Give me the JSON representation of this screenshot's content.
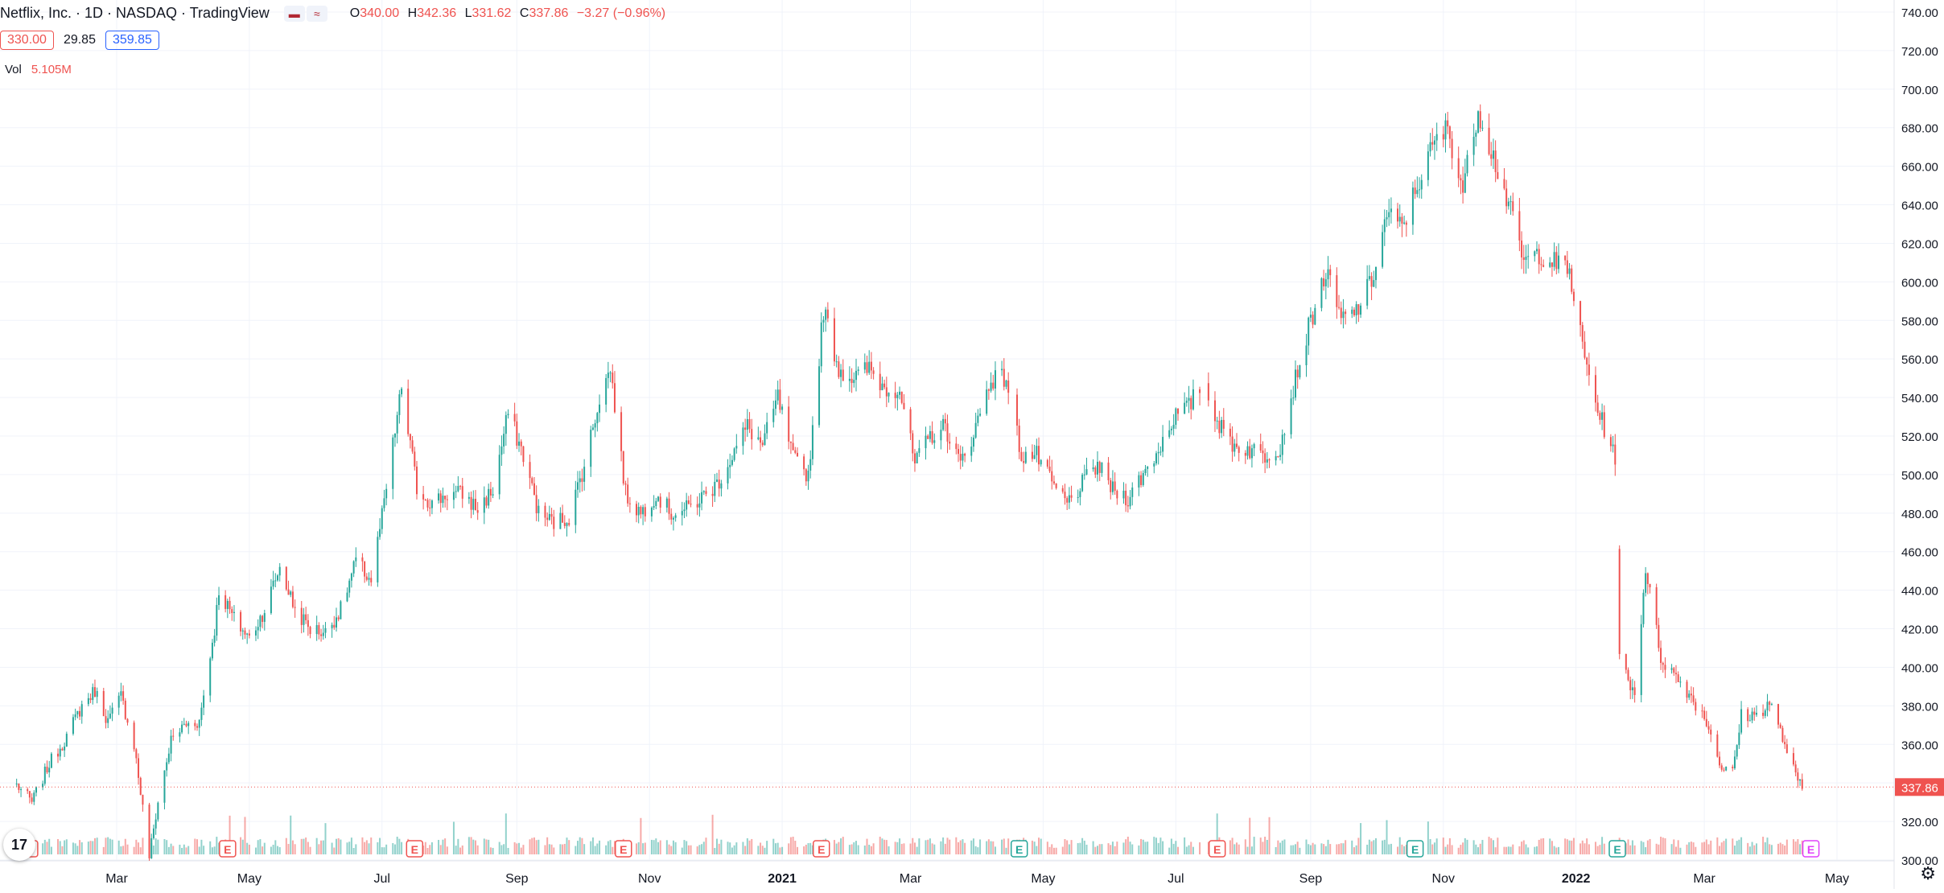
{
  "header": {
    "title": "Netflix, Inc. · 1D · NASDAQ · TradingView",
    "ohlc": {
      "o_label": "O",
      "o": "340.00",
      "h_label": "H",
      "h": "342.36",
      "l_label": "L",
      "l": "331.62",
      "c_label": "C",
      "c": "337.86",
      "change": "−3.27 (−0.96%)"
    },
    "ma": {
      "low": "330.00",
      "mid": "29.85",
      "high": "359.85"
    },
    "vol_label": "Vol",
    "vol_value": "5.105M"
  },
  "colors": {
    "up": "#26a69a",
    "down": "#ef5350",
    "grid": "#f0f3fa",
    "axis_text": "#131722",
    "earnings_future": "#e040fb",
    "ma_high": "#2962ff"
  },
  "icons": {
    "logo": "tradingview-logo-icon",
    "settings": "gear-icon"
  },
  "chart_data": {
    "type": "candlestick",
    "title": "Netflix, Inc. · 1D · NASDAQ · TradingView",
    "last_price": 337.86,
    "ylim": [
      300,
      745
    ],
    "y_ticks": [
      300,
      320,
      340,
      360,
      380,
      400,
      420,
      440,
      460,
      480,
      500,
      520,
      540,
      560,
      580,
      600,
      620,
      640,
      660,
      680,
      700,
      720,
      740
    ],
    "y_tick_labels": [
      "300.00",
      "320.00",
      "340.00",
      "360.00",
      "380.00",
      "400.00",
      "420.00",
      "440.00",
      "460.00",
      "480.00",
      "500.00",
      "520.00",
      "540.00",
      "560.00",
      "580.00",
      "600.00",
      "620.00",
      "640.00",
      "660.00",
      "680.00",
      "700.00",
      "720.00",
      "740.00"
    ],
    "x_range": [
      "2020-01-15",
      "2022-05-31"
    ],
    "x_ticks": [
      {
        "date": "2020-03-01",
        "label": "Mar",
        "bold": false
      },
      {
        "date": "2020-05-01",
        "label": "May",
        "bold": false
      },
      {
        "date": "2020-07-01",
        "label": "Jul",
        "bold": false
      },
      {
        "date": "2020-09-01",
        "label": "Sep",
        "bold": false
      },
      {
        "date": "2020-11-01",
        "label": "Nov",
        "bold": false
      },
      {
        "date": "2021-01-01",
        "label": "2021",
        "bold": true
      },
      {
        "date": "2021-03-01",
        "label": "Mar",
        "bold": false
      },
      {
        "date": "2021-05-01",
        "label": "May",
        "bold": false
      },
      {
        "date": "2021-07-01",
        "label": "Jul",
        "bold": false
      },
      {
        "date": "2021-09-01",
        "label": "Sep",
        "bold": false
      },
      {
        "date": "2021-11-01",
        "label": "Nov",
        "bold": false
      },
      {
        "date": "2022-01-01",
        "label": "2022",
        "bold": true
      },
      {
        "date": "2022-03-01",
        "label": "Mar",
        "bold": false
      },
      {
        "date": "2022-05-01",
        "label": "May",
        "bold": false
      }
    ],
    "price_path": [
      [
        "2020-01-15",
        339
      ],
      [
        "2020-01-22",
        330
      ],
      [
        "2020-01-30",
        350
      ],
      [
        "2020-02-06",
        362
      ],
      [
        "2020-02-14",
        380
      ],
      [
        "2020-02-20",
        388
      ],
      [
        "2020-02-26",
        372
      ],
      [
        "2020-03-03",
        385
      ],
      [
        "2020-03-09",
        360
      ],
      [
        "2020-03-16",
        302
      ],
      [
        "2020-03-20",
        330
      ],
      [
        "2020-03-26",
        362
      ],
      [
        "2020-04-01",
        370
      ],
      [
        "2020-04-08",
        372
      ],
      [
        "2020-04-15",
        420
      ],
      [
        "2020-04-17",
        440
      ],
      [
        "2020-04-24",
        425
      ],
      [
        "2020-05-01",
        415
      ],
      [
        "2020-05-08",
        430
      ],
      [
        "2020-05-15",
        452
      ],
      [
        "2020-05-22",
        430
      ],
      [
        "2020-05-29",
        420
      ],
      [
        "2020-06-05",
        418
      ],
      [
        "2020-06-12",
        430
      ],
      [
        "2020-06-19",
        455
      ],
      [
        "2020-06-26",
        445
      ],
      [
        "2020-07-02",
        485
      ],
      [
        "2020-07-10",
        545
      ],
      [
        "2020-07-17",
        493
      ],
      [
        "2020-07-24",
        485
      ],
      [
        "2020-07-31",
        490
      ],
      [
        "2020-08-07",
        490
      ],
      [
        "2020-08-14",
        482
      ],
      [
        "2020-08-21",
        492
      ],
      [
        "2020-08-28",
        532
      ],
      [
        "2020-09-04",
        510
      ],
      [
        "2020-09-11",
        480
      ],
      [
        "2020-09-18",
        475
      ],
      [
        "2020-09-25",
        478
      ],
      [
        "2020-10-02",
        505
      ],
      [
        "2020-10-09",
        540
      ],
      [
        "2020-10-14",
        555
      ],
      [
        "2020-10-21",
        490
      ],
      [
        "2020-10-28",
        480
      ],
      [
        "2020-11-04",
        490
      ],
      [
        "2020-11-11",
        480
      ],
      [
        "2020-11-18",
        482
      ],
      [
        "2020-11-25",
        488
      ],
      [
        "2020-12-02",
        495
      ],
      [
        "2020-12-09",
        510
      ],
      [
        "2020-12-16",
        525
      ],
      [
        "2020-12-23",
        515
      ],
      [
        "2020-12-30",
        540
      ],
      [
        "2021-01-06",
        508
      ],
      [
        "2021-01-13",
        500
      ],
      [
        "2021-01-20",
        586
      ],
      [
        "2021-01-27",
        555
      ],
      [
        "2021-02-03",
        550
      ],
      [
        "2021-02-10",
        555
      ],
      [
        "2021-02-17",
        545
      ],
      [
        "2021-02-24",
        545
      ],
      [
        "2021-03-03",
        505
      ],
      [
        "2021-03-10",
        520
      ],
      [
        "2021-03-17",
        525
      ],
      [
        "2021-03-24",
        505
      ],
      [
        "2021-03-31",
        525
      ],
      [
        "2021-04-07",
        550
      ],
      [
        "2021-04-14",
        550
      ],
      [
        "2021-04-21",
        510
      ],
      [
        "2021-04-28",
        510
      ],
      [
        "2021-05-05",
        495
      ],
      [
        "2021-05-12",
        485
      ],
      [
        "2021-05-19",
        495
      ],
      [
        "2021-05-26",
        505
      ],
      [
        "2021-06-02",
        492
      ],
      [
        "2021-06-09",
        488
      ],
      [
        "2021-06-16",
        500
      ],
      [
        "2021-06-23",
        513
      ],
      [
        "2021-06-30",
        530
      ],
      [
        "2021-07-07",
        535
      ],
      [
        "2021-07-14",
        550
      ],
      [
        "2021-07-21",
        525
      ],
      [
        "2021-07-28",
        515
      ],
      [
        "2021-08-04",
        513
      ],
      [
        "2021-08-11",
        510
      ],
      [
        "2021-08-18",
        515
      ],
      [
        "2021-08-25",
        550
      ],
      [
        "2021-09-01",
        580
      ],
      [
        "2021-09-08",
        605
      ],
      [
        "2021-09-15",
        580
      ],
      [
        "2021-09-22",
        585
      ],
      [
        "2021-09-29",
        600
      ],
      [
        "2021-10-06",
        635
      ],
      [
        "2021-10-13",
        628
      ],
      [
        "2021-10-20",
        650
      ],
      [
        "2021-10-27",
        670
      ],
      [
        "2021-11-03",
        680
      ],
      [
        "2021-11-10",
        648
      ],
      [
        "2021-11-17",
        690
      ],
      [
        "2021-11-24",
        665
      ],
      [
        "2021-12-01",
        640
      ],
      [
        "2021-12-08",
        610
      ],
      [
        "2021-12-15",
        615
      ],
      [
        "2021-12-22",
        610
      ],
      [
        "2021-12-29",
        605
      ],
      [
        "2022-01-05",
        560
      ],
      [
        "2022-01-12",
        530
      ],
      [
        "2022-01-19",
        510
      ],
      [
        "2022-01-21",
        405
      ],
      [
        "2022-01-28",
        386
      ],
      [
        "2022-02-02",
        452
      ],
      [
        "2022-02-09",
        405
      ],
      [
        "2022-02-16",
        395
      ],
      [
        "2022-02-23",
        385
      ],
      [
        "2022-03-02",
        372
      ],
      [
        "2022-03-09",
        348
      ],
      [
        "2022-03-14",
        345
      ],
      [
        "2022-03-18",
        375
      ],
      [
        "2022-03-25",
        375
      ],
      [
        "2022-03-31",
        382
      ],
      [
        "2022-04-07",
        360
      ],
      [
        "2022-04-13",
        340
      ],
      [
        "2022-04-15",
        337.86
      ]
    ],
    "gaps": [
      [
        "2021-04-16",
        "2021-04-18"
      ],
      [
        "2021-07-13",
        "2021-07-15"
      ],
      [
        "2022-01-01",
        "2022-01-02"
      ],
      [
        "2022-01-20",
        "2022-01-20"
      ]
    ],
    "earnings": [
      {
        "date": "2020-01-21",
        "color": "down"
      },
      {
        "date": "2020-04-21",
        "color": "down"
      },
      {
        "date": "2020-07-16",
        "color": "down"
      },
      {
        "date": "2020-10-20",
        "color": "down"
      },
      {
        "date": "2021-01-19",
        "color": "down"
      },
      {
        "date": "2021-04-20",
        "color": "up"
      },
      {
        "date": "2021-07-20",
        "color": "down"
      },
      {
        "date": "2021-10-19",
        "color": "up"
      },
      {
        "date": "2022-01-20",
        "color": "up"
      },
      {
        "date": "2022-04-19",
        "color": "future"
      }
    ],
    "earnings_label": "E"
  }
}
